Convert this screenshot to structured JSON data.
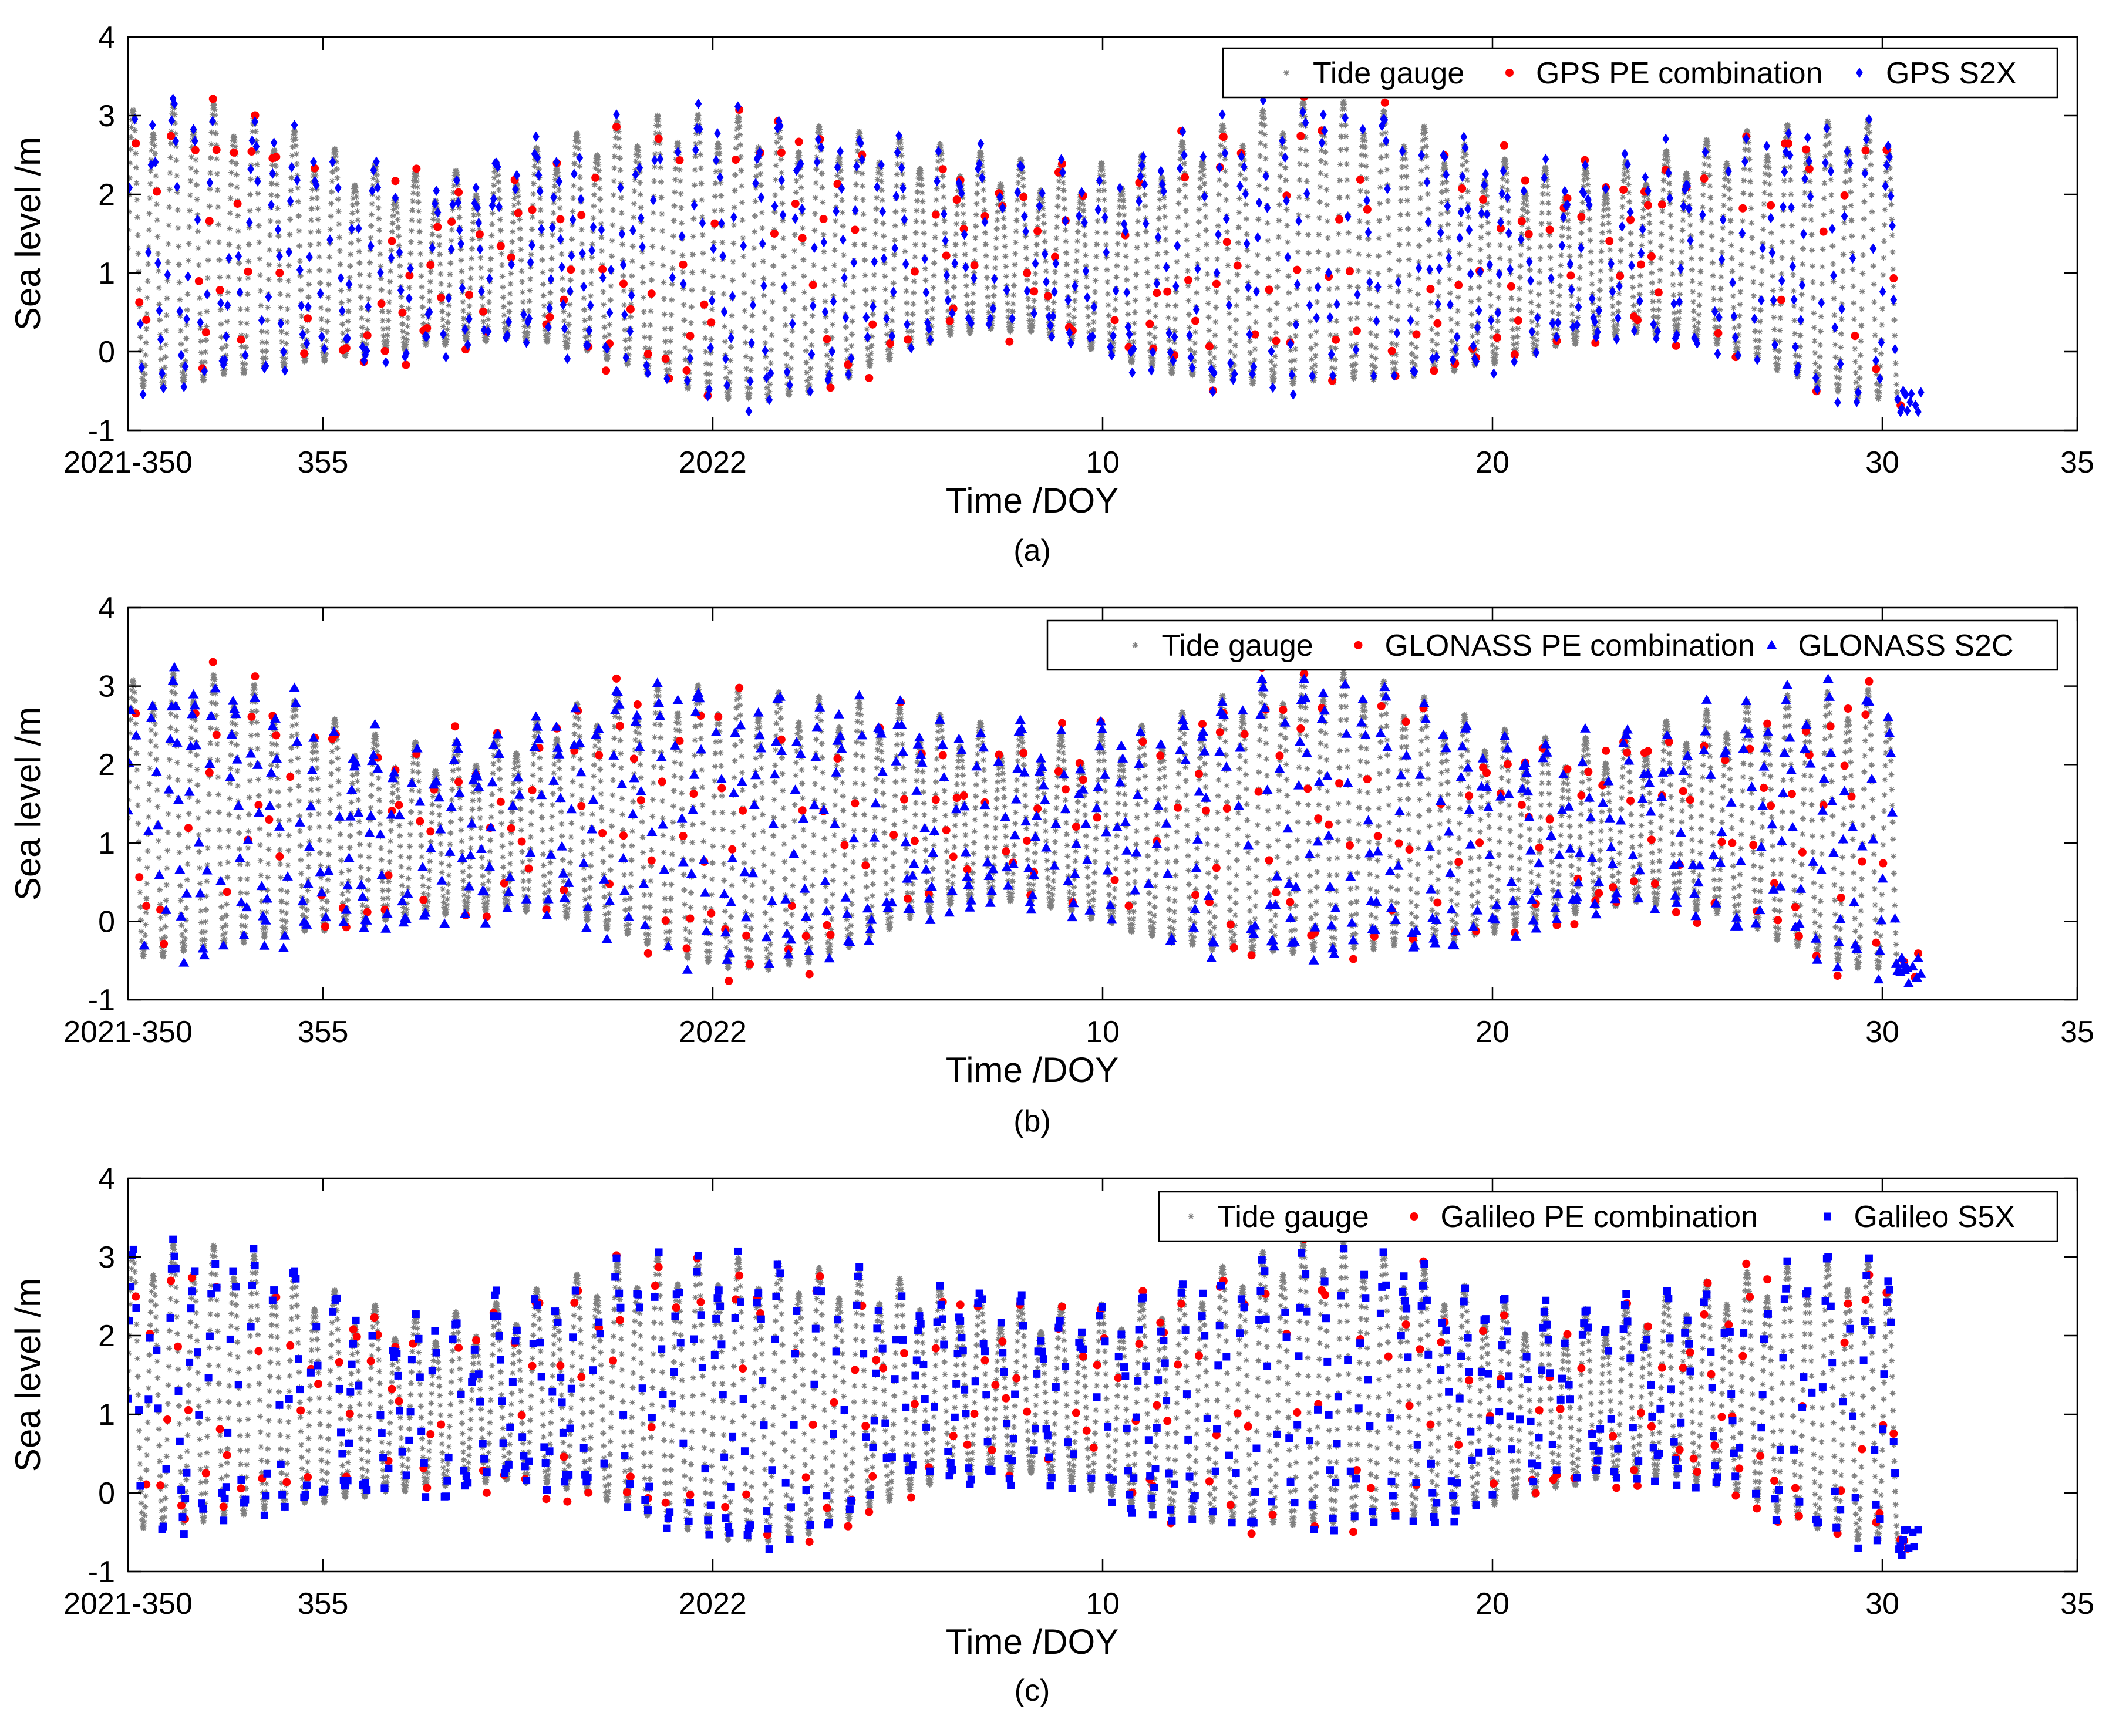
{
  "figure": {
    "panels": [
      {
        "id": "a",
        "caption": "(a)",
        "legend": [
          {
            "label": "Tide gauge",
            "marker": "star",
            "color": "#808080"
          },
          {
            "label": "GPS PE combination",
            "marker": "circle",
            "color": "#ff0000"
          },
          {
            "label": "GPS S2X",
            "marker": "diamond",
            "color": "#0000ff"
          }
        ]
      },
      {
        "id": "b",
        "caption": "(b)",
        "legend": [
          {
            "label": "Tide gauge",
            "marker": "star",
            "color": "#808080"
          },
          {
            "label": "GLONASS PE combination",
            "marker": "circle",
            "color": "#ff0000"
          },
          {
            "label": "GLONASS S2C",
            "marker": "triangle",
            "color": "#0000ff"
          }
        ]
      },
      {
        "id": "c",
        "caption": "(c)",
        "legend": [
          {
            "label": "Tide gauge",
            "marker": "star",
            "color": "#808080"
          },
          {
            "label": "Galileo PE combination",
            "marker": "circle",
            "color": "#ff0000"
          },
          {
            "label": "Galileo S5X",
            "marker": "square",
            "color": "#0000ff"
          }
        ]
      }
    ]
  },
  "chart_data": [
    {
      "type": "scatter",
      "panel": "a",
      "xlabel": "Time /DOY",
      "ylabel": "Sea level /m",
      "xlim": [
        350,
        400
      ],
      "ylim": [
        -1,
        4
      ],
      "x_ticks": [
        {
          "value": 350,
          "label": "2021-350"
        },
        {
          "value": 355,
          "label": "355"
        },
        {
          "value": 365,
          "label": "2022"
        },
        {
          "value": 375,
          "label": "10"
        },
        {
          "value": 385,
          "label": "20"
        },
        {
          "value": 395,
          "label": "30"
        },
        {
          "value": 400,
          "label": "35"
        }
      ],
      "y_ticks": [
        -1,
        0,
        1,
        2,
        3,
        4
      ],
      "grid": false,
      "legend_position": "top-right",
      "series": [
        {
          "name": "Tide gauge",
          "marker": "star",
          "color": "#808080",
          "x_range": [
            350.0,
            395.4
          ],
          "model": "semi-diurnal tide, range approx. -0.8 to 3.2 m"
        },
        {
          "name": "GPS PE combination",
          "marker": "circle",
          "color": "#ff0000",
          "x_range": [
            350.0,
            396.0
          ],
          "model": "sampled along tide curve"
        },
        {
          "name": "GPS S2X",
          "marker": "diamond",
          "color": "#0000ff",
          "x_range": [
            350.0,
            396.0
          ],
          "model": "sampled along tide curve"
        }
      ]
    },
    {
      "type": "scatter",
      "panel": "b",
      "xlabel": "Time /DOY",
      "ylabel": "Sea level /m",
      "xlim": [
        350,
        400
      ],
      "ylim": [
        -1,
        4
      ],
      "x_ticks": [
        {
          "value": 350,
          "label": "2021-350"
        },
        {
          "value": 355,
          "label": "355"
        },
        {
          "value": 365,
          "label": "2022"
        },
        {
          "value": 375,
          "label": "10"
        },
        {
          "value": 385,
          "label": "20"
        },
        {
          "value": 395,
          "label": "30"
        },
        {
          "value": 400,
          "label": "35"
        }
      ],
      "y_ticks": [
        -1,
        0,
        1,
        2,
        3,
        4
      ],
      "grid": false,
      "legend_position": "top-right",
      "series": [
        {
          "name": "Tide gauge",
          "marker": "star",
          "color": "#808080",
          "x_range": [
            350.0,
            395.4
          ],
          "model": "semi-diurnal tide, range approx. -0.8 to 3.2 m"
        },
        {
          "name": "GLONASS PE combination",
          "marker": "circle",
          "color": "#ff0000",
          "x_range": [
            350.0,
            396.0
          ],
          "model": "sampled along tide curve"
        },
        {
          "name": "GLONASS S2C",
          "marker": "triangle",
          "color": "#0000ff",
          "x_range": [
            350.0,
            396.0
          ],
          "model": "sampled along tide curve"
        }
      ]
    },
    {
      "type": "scatter",
      "panel": "c",
      "xlabel": "Time /DOY",
      "ylabel": "Sea level /m",
      "xlim": [
        350,
        400
      ],
      "ylim": [
        -1,
        4
      ],
      "x_ticks": [
        {
          "value": 350,
          "label": "2021-350"
        },
        {
          "value": 355,
          "label": "355"
        },
        {
          "value": 365,
          "label": "2022"
        },
        {
          "value": 375,
          "label": "10"
        },
        {
          "value": 385,
          "label": "20"
        },
        {
          "value": 395,
          "label": "30"
        },
        {
          "value": 400,
          "label": "35"
        }
      ],
      "y_ticks": [
        -1,
        0,
        1,
        2,
        3,
        4
      ],
      "grid": false,
      "legend_position": "top-right",
      "series": [
        {
          "name": "Tide gauge",
          "marker": "star",
          "color": "#808080",
          "x_range": [
            350.0,
            395.4
          ],
          "model": "semi-diurnal tide, range approx. -0.8 to 3.2 m"
        },
        {
          "name": "Galileo PE combination",
          "marker": "circle",
          "color": "#ff0000",
          "x_range": [
            350.0,
            396.0
          ],
          "model": "sampled along tide curve"
        },
        {
          "name": "Galileo S5X",
          "marker": "square",
          "color": "#0000ff",
          "x_range": [
            350.0,
            396.0
          ],
          "model": "sampled along tide curve"
        }
      ]
    }
  ]
}
